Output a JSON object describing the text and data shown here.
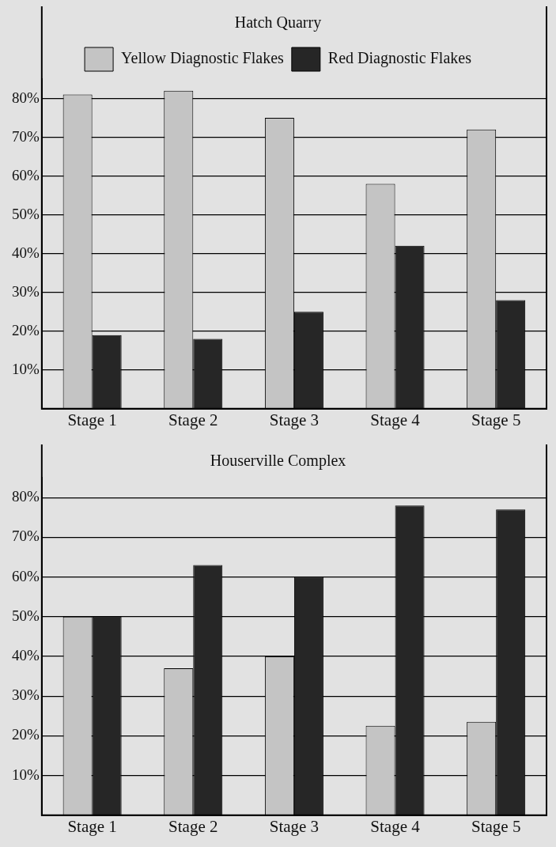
{
  "chart_data": [
    {
      "type": "bar",
      "title": "Hatch Quarry",
      "categories": [
        "Stage 1",
        "Stage 2",
        "Stage 3",
        "Stage 4",
        "Stage 5"
      ],
      "series": [
        {
          "name": "Yellow Diagnostic Flakes",
          "color": "#c4c4c4",
          "values": [
            81,
            82,
            75,
            58,
            72
          ]
        },
        {
          "name": "Red Diagnostic Flakes",
          "color": "#262626",
          "values": [
            19,
            18,
            25,
            42,
            28
          ]
        }
      ],
      "ylim": [
        0,
        85
      ],
      "yticks": [
        {
          "value": 10,
          "label": "10%"
        },
        {
          "value": 20,
          "label": "20%"
        },
        {
          "value": 30,
          "label": "30%"
        },
        {
          "value": 40,
          "label": "40%"
        },
        {
          "value": 50,
          "label": "50%"
        },
        {
          "value": 60,
          "label": "60%"
        },
        {
          "value": 70,
          "label": "70%"
        },
        {
          "value": 80,
          "label": "80%"
        }
      ],
      "grid": "y",
      "legend": "top"
    },
    {
      "type": "bar",
      "title": "Houserville Complex",
      "categories": [
        "Stage 1",
        "Stage 2",
        "Stage 3",
        "Stage 4",
        "Stage 5"
      ],
      "series": [
        {
          "color": "#c4c4c4",
          "values": [
            50,
            37,
            40,
            22.5,
            23.5
          ]
        },
        {
          "color": "#262626",
          "values": [
            50,
            63,
            60,
            78,
            77
          ]
        }
      ],
      "ylim": [
        0,
        85
      ],
      "yticks": [
        {
          "value": 10,
          "label": "10%"
        },
        {
          "value": 20,
          "label": "20%"
        },
        {
          "value": 30,
          "label": "30%"
        },
        {
          "value": 40,
          "label": "40%"
        },
        {
          "value": 50,
          "label": "50%"
        },
        {
          "value": 60,
          "label": "60%"
        },
        {
          "value": 70,
          "label": "70%"
        },
        {
          "value": 80,
          "label": "80%"
        }
      ],
      "grid": "y",
      "legend": false
    }
  ]
}
